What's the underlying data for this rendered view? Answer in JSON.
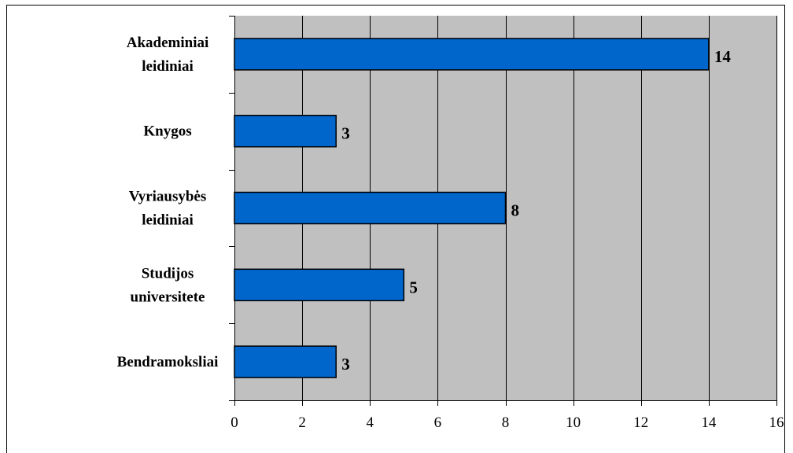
{
  "chart_data": {
    "type": "bar",
    "orientation": "horizontal",
    "categories": [
      [
        "Akademiniai",
        "leidiniai"
      ],
      [
        "Knygos"
      ],
      [
        "Vyriausybės",
        "leidiniai"
      ],
      [
        "Studijos",
        "universitete"
      ],
      [
        "Bendramoksliai"
      ]
    ],
    "values": [
      14,
      3,
      8,
      5,
      3
    ],
    "data_labels": [
      "14",
      "3",
      "8",
      "5",
      "3"
    ],
    "xlim": [
      0,
      16
    ],
    "x_ticks": [
      0,
      2,
      4,
      6,
      8,
      10,
      12,
      14,
      16
    ],
    "grid": true,
    "legend": false,
    "colors": {
      "bar_fill": "#0066CC",
      "bar_stroke": "#000000",
      "plot_background": "#C0C0C0",
      "gridline": "#000000"
    }
  }
}
